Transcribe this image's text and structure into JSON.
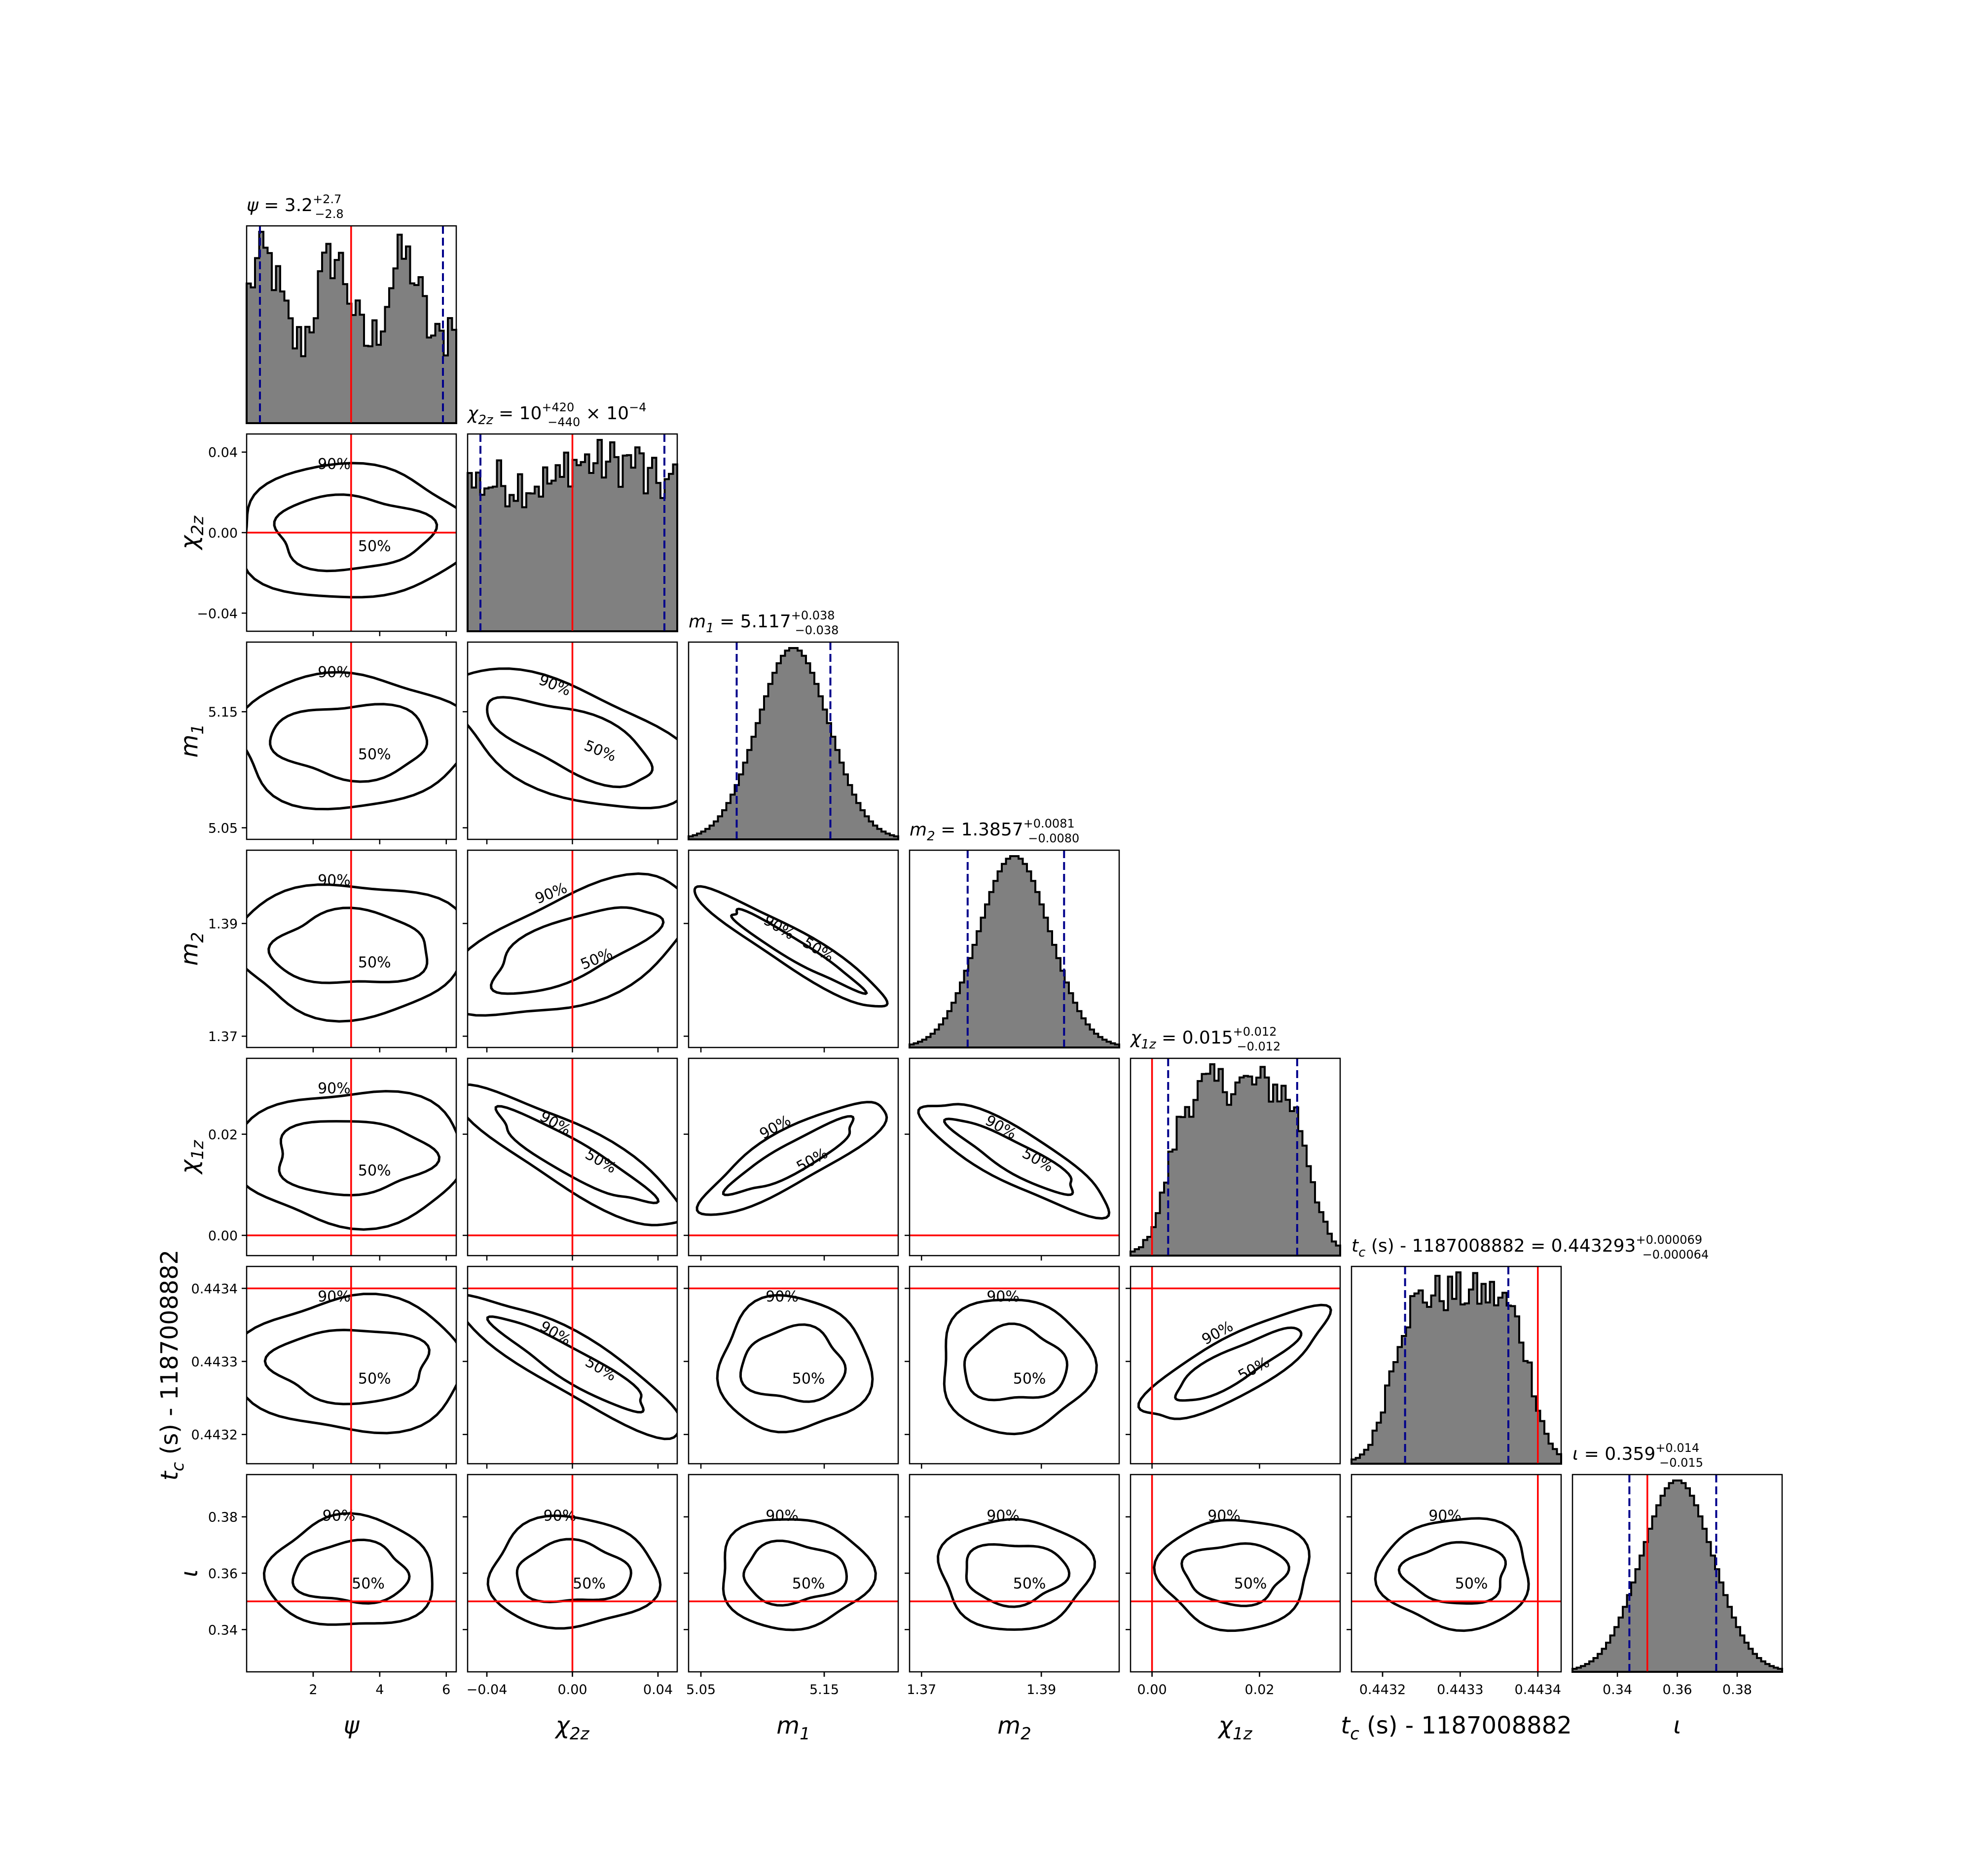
{
  "colors": {
    "hist_fill": "#808080",
    "hist_edge": "#000000",
    "truth_line": "#ff0000",
    "quantile_line": "#00008b",
    "contour": "#000000",
    "background": "#ffffff"
  },
  "chart_data": {
    "type": "corner",
    "parameters": [
      {
        "key": "psi",
        "symbol": "ψ",
        "sub": "",
        "suffix": "",
        "title_value": "3.2",
        "title_plus": "+2.7",
        "title_minus": "−2.8",
        "title_extra": "",
        "median": 3.2,
        "q_lo": 0.4,
        "q_hi": 5.9,
        "truth": 3.14,
        "range": [
          0,
          6.3
        ],
        "ticks": [
          2,
          4,
          6
        ],
        "tick_labels": [
          "2",
          "4",
          "6"
        ],
        "dist": "multimodal"
      },
      {
        "key": "chi2z",
        "symbol": "χ",
        "sub": "2z",
        "suffix": "",
        "title_value": "10",
        "title_plus": "+420",
        "title_minus": "−440",
        "title_extra": " × 10",
        "title_exp": "−4",
        "median": 0.001,
        "q_lo": -0.043,
        "q_hi": 0.043,
        "truth": 0.0,
        "range": [
          -0.049,
          0.049
        ],
        "ticks": [
          -0.04,
          0.0,
          0.04
        ],
        "tick_labels": [
          "−0.04",
          "0.00",
          "0.04"
        ],
        "dist": "flat"
      },
      {
        "key": "m1",
        "symbol": "m",
        "sub": "1",
        "suffix": "",
        "title_value": "5.117",
        "title_plus": "+0.038",
        "title_minus": "−0.038",
        "title_extra": "",
        "median": 5.117,
        "q_lo": 5.079,
        "q_hi": 5.155,
        "truth": null,
        "range": [
          5.04,
          5.21
        ],
        "ticks": [
          5.05,
          5.15
        ],
        "tick_labels": [
          "5.05",
          "5.15"
        ],
        "dist": "gauss"
      },
      {
        "key": "m2",
        "symbol": "m",
        "sub": "2",
        "suffix": "",
        "title_value": "1.3857",
        "title_plus": "+0.0081",
        "title_minus": "−0.0080",
        "title_extra": "",
        "median": 1.3857,
        "q_lo": 1.3777,
        "q_hi": 1.3938,
        "truth": null,
        "range": [
          1.368,
          1.403
        ],
        "ticks": [
          1.37,
          1.39
        ],
        "tick_labels": [
          "1.37",
          "1.39"
        ],
        "dist": "gauss"
      },
      {
        "key": "chi1z",
        "symbol": "χ",
        "sub": "1z",
        "suffix": "",
        "title_value": "0.015",
        "title_plus": "+0.012",
        "title_minus": "−0.012",
        "title_extra": "",
        "median": 0.015,
        "q_lo": 0.003,
        "q_hi": 0.027,
        "truth": 0.0,
        "range": [
          -0.004,
          0.035
        ],
        "ticks": [
          0.0,
          0.02
        ],
        "tick_labels": [
          "0.00",
          "0.02"
        ],
        "dist": "broad"
      },
      {
        "key": "tc",
        "symbol": "t",
        "sub": "c",
        "suffix": " (s) - 1187008882",
        "title_value": "0.443293",
        "title_plus": "+0.000069",
        "title_minus": "−0.000064",
        "title_extra": "",
        "median": 0.443293,
        "q_lo": 0.443229,
        "q_hi": 0.443362,
        "truth": 0.4434,
        "range": [
          0.44316,
          0.44343
        ],
        "ticks": [
          0.4432,
          0.4433,
          0.4434
        ],
        "tick_labels": [
          "0.4432",
          "0.4433",
          "0.4434"
        ],
        "dist": "broad"
      },
      {
        "key": "iota",
        "symbol": "ι",
        "sub": "",
        "suffix": "",
        "title_value": "0.359",
        "title_plus": "+0.014",
        "title_minus": "−0.015",
        "title_extra": "",
        "median": 0.359,
        "q_lo": 0.344,
        "q_hi": 0.373,
        "truth": 0.35,
        "range": [
          0.325,
          0.395
        ],
        "ticks": [
          0.34,
          0.36,
          0.38
        ],
        "tick_labels": [
          "0.34",
          "0.36",
          "0.38"
        ],
        "dist": "gauss"
      }
    ],
    "contour_levels": [
      "50%",
      "90%"
    ],
    "grid": false,
    "legend": "none"
  }
}
